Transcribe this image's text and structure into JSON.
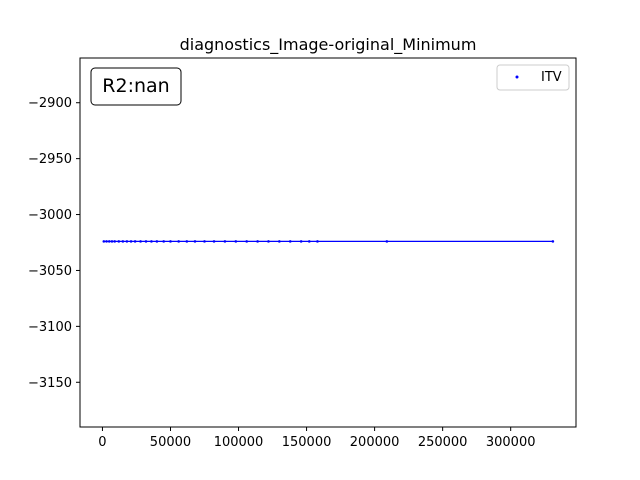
{
  "chart_data": {
    "type": "line",
    "title": "diagnostics_Image-original_Minimum",
    "xlabel": "",
    "ylabel": "",
    "xlim": [
      -16500,
      348000
    ],
    "ylim": [
      -3190,
      -2860
    ],
    "xticks": [
      0,
      50000,
      100000,
      150000,
      200000,
      250000,
      300000
    ],
    "xtick_labels": [
      "0",
      "50000",
      "100000",
      "150000",
      "200000",
      "250000",
      "300000"
    ],
    "yticks": [
      -2900,
      -2950,
      -3000,
      -3050,
      -3100,
      -3150
    ],
    "ytick_labels": [
      "−2900",
      "−2950",
      "−3000",
      "−3050",
      "−3100",
      "−3150"
    ],
    "annotation": "R2:nan",
    "grid": false,
    "legend_position": "top-right",
    "series": [
      {
        "name": "ITV",
        "color": "#0000ff",
        "x": [
          1000,
          3000,
          5000,
          7000,
          9000,
          12000,
          15000,
          18000,
          21000,
          24000,
          28000,
          32000,
          36000,
          40000,
          45000,
          50000,
          56000,
          62000,
          68000,
          75000,
          82000,
          90000,
          98000,
          106000,
          114000,
          122000,
          130000,
          138000,
          146000,
          152000,
          158000,
          209000,
          331000
        ],
        "y": [
          -3024,
          -3024,
          -3024,
          -3024,
          -3024,
          -3024,
          -3024,
          -3024,
          -3024,
          -3024,
          -3024,
          -3024,
          -3024,
          -3024,
          -3024,
          -3024,
          -3024,
          -3024,
          -3024,
          -3024,
          -3024,
          -3024,
          -3024,
          -3024,
          -3024,
          -3024,
          -3024,
          -3024,
          -3024,
          -3024,
          -3024,
          -3024,
          -3024
        ]
      }
    ]
  }
}
